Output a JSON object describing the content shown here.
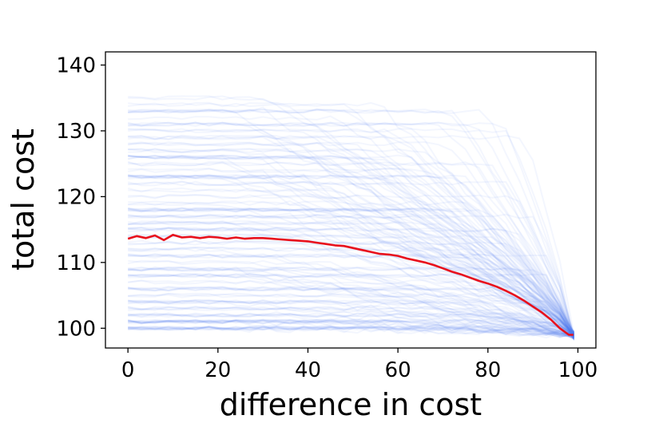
{
  "chart_data": {
    "type": "line",
    "title": "",
    "xlabel": "difference in cost",
    "ylabel": "total cost",
    "xlim": [
      -5,
      104
    ],
    "ylim": [
      97,
      142
    ],
    "xticks": [
      0,
      20,
      40,
      60,
      80,
      100
    ],
    "yticks": [
      100,
      110,
      120,
      130,
      140
    ],
    "grid": false,
    "legend": "none",
    "background_series": {
      "color": "#4f7ff0",
      "description_count": 500,
      "x_range": [
        0,
        99
      ],
      "end_value": 99,
      "start_range": [
        99,
        140
      ]
    },
    "series": [
      {
        "color": "#e8101c",
        "x": [
          0,
          2,
          4,
          6,
          8,
          10,
          12,
          14,
          16,
          18,
          20,
          22,
          24,
          26,
          28,
          30,
          32,
          34,
          36,
          38,
          40,
          42,
          44,
          46,
          48,
          50,
          52,
          54,
          56,
          58,
          60,
          62,
          64,
          66,
          68,
          70,
          72,
          74,
          76,
          78,
          80,
          82,
          84,
          86,
          88,
          90,
          92,
          94,
          96,
          98,
          99
        ],
        "values": [
          113.6,
          114.0,
          113.7,
          114.1,
          113.4,
          114.2,
          113.8,
          113.9,
          113.7,
          113.9,
          113.8,
          113.6,
          113.8,
          113.6,
          113.7,
          113.7,
          113.6,
          113.5,
          113.4,
          113.3,
          113.2,
          113.0,
          112.8,
          112.6,
          112.5,
          112.2,
          111.9,
          111.6,
          111.3,
          111.2,
          111.0,
          110.6,
          110.3,
          110.0,
          109.6,
          109.1,
          108.6,
          108.2,
          107.7,
          107.2,
          106.8,
          106.3,
          105.7,
          105.0,
          104.2,
          103.3,
          102.4,
          101.3,
          100.0,
          99.0,
          99.0
        ]
      }
    ]
  }
}
